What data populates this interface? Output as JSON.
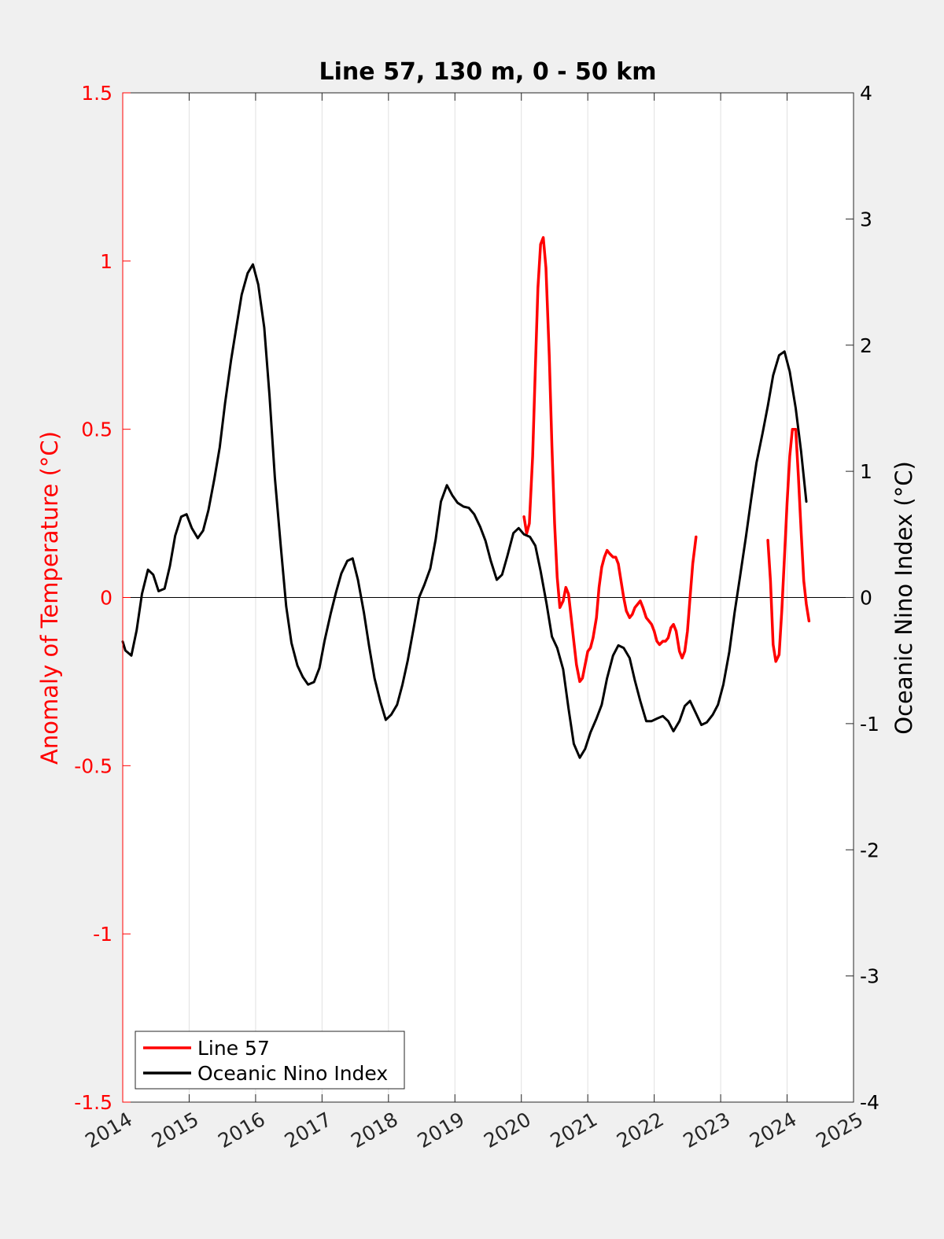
{
  "chart_data": {
    "type": "line",
    "title": "Line 57, 130 m, 0 - 50 km",
    "xlabel": "",
    "ylabel_left": "Anomaly of Temperature (°C)",
    "ylabel_right": "Oceanic Nino Index (°C)",
    "xlim": [
      2014,
      2025
    ],
    "ylim_left": [
      -1.5,
      1.5
    ],
    "ylim_right": [
      -4,
      4
    ],
    "x_ticks": [
      "2014",
      "2015",
      "2016",
      "2017",
      "2018",
      "2019",
      "2020",
      "2021",
      "2022",
      "2023",
      "2024",
      "2025"
    ],
    "y_ticks_left": [
      "-1.5",
      "-1",
      "-0.5",
      "0",
      "0.5",
      "1",
      "1.5"
    ],
    "y_ticks_right": [
      "-4",
      "-3",
      "-2",
      "-1",
      "0",
      "1",
      "2",
      "3",
      "4"
    ],
    "grid": "x-only",
    "zero_line": true,
    "legend_position": "bottom-left",
    "colors": {
      "line57": "#ff0000",
      "oni": "#000000",
      "left_axis": "#ff0000",
      "right_axis": "#000000"
    },
    "series": [
      {
        "name": "Line 57",
        "axis": "left",
        "segments": [
          [
            [
              2020.04,
              0.24
            ],
            [
              2020.08,
              0.19
            ],
            [
              2020.12,
              0.22
            ],
            [
              2020.17,
              0.42
            ],
            [
              2020.21,
              0.68
            ],
            [
              2020.25,
              0.92
            ],
            [
              2020.29,
              1.05
            ],
            [
              2020.33,
              1.07
            ],
            [
              2020.37,
              0.98
            ],
            [
              2020.42,
              0.72
            ],
            [
              2020.46,
              0.45
            ],
            [
              2020.5,
              0.22
            ],
            [
              2020.54,
              0.06
            ],
            [
              2020.58,
              -0.03
            ],
            [
              2020.63,
              -0.01
            ],
            [
              2020.67,
              0.03
            ],
            [
              2020.71,
              0.01
            ],
            [
              2020.75,
              -0.06
            ],
            [
              2020.79,
              -0.13
            ],
            [
              2020.83,
              -0.2
            ],
            [
              2020.88,
              -0.25
            ],
            [
              2020.92,
              -0.24
            ],
            [
              2020.96,
              -0.2
            ],
            [
              2021.0,
              -0.16
            ],
            [
              2021.04,
              -0.15
            ],
            [
              2021.08,
              -0.12
            ],
            [
              2021.13,
              -0.06
            ],
            [
              2021.17,
              0.03
            ],
            [
              2021.21,
              0.09
            ],
            [
              2021.25,
              0.12
            ],
            [
              2021.29,
              0.14
            ],
            [
              2021.33,
              0.13
            ],
            [
              2021.38,
              0.12
            ],
            [
              2021.42,
              0.12
            ],
            [
              2021.46,
              0.1
            ],
            [
              2021.5,
              0.05
            ],
            [
              2021.54,
              0.0
            ],
            [
              2021.58,
              -0.04
            ],
            [
              2021.63,
              -0.06
            ],
            [
              2021.67,
              -0.05
            ],
            [
              2021.71,
              -0.03
            ],
            [
              2021.75,
              -0.02
            ],
            [
              2021.79,
              -0.01
            ],
            [
              2021.83,
              -0.03
            ],
            [
              2021.88,
              -0.06
            ],
            [
              2021.92,
              -0.07
            ],
            [
              2021.96,
              -0.08
            ],
            [
              2022.0,
              -0.1
            ],
            [
              2022.04,
              -0.13
            ],
            [
              2022.08,
              -0.14
            ],
            [
              2022.13,
              -0.13
            ],
            [
              2022.17,
              -0.13
            ],
            [
              2022.21,
              -0.12
            ],
            [
              2022.25,
              -0.09
            ],
            [
              2022.29,
              -0.08
            ],
            [
              2022.33,
              -0.1
            ],
            [
              2022.38,
              -0.16
            ],
            [
              2022.42,
              -0.18
            ],
            [
              2022.46,
              -0.16
            ],
            [
              2022.5,
              -0.1
            ],
            [
              2022.54,
              0.0
            ],
            [
              2022.58,
              0.1
            ],
            [
              2022.63,
              0.18
            ]
          ],
          [
            [
              2023.71,
              0.17
            ],
            [
              2023.75,
              0.05
            ],
            [
              2023.79,
              -0.14
            ],
            [
              2023.83,
              -0.19
            ],
            [
              2023.88,
              -0.17
            ],
            [
              2023.92,
              -0.04
            ],
            [
              2023.96,
              0.12
            ],
            [
              2024.0,
              0.28
            ],
            [
              2024.04,
              0.42
            ],
            [
              2024.08,
              0.5
            ],
            [
              2024.13,
              0.5
            ],
            [
              2024.17,
              0.36
            ],
            [
              2024.21,
              0.2
            ],
            [
              2024.25,
              0.05
            ],
            [
              2024.29,
              -0.02
            ],
            [
              2024.33,
              -0.07
            ]
          ]
        ]
      },
      {
        "name": "Oceanic Nino Index",
        "axis": "right",
        "segments": [
          [
            [
              2014.0,
              -0.35
            ],
            [
              2014.04,
              -0.42
            ],
            [
              2014.13,
              -0.46
            ],
            [
              2014.21,
              -0.26
            ],
            [
              2014.29,
              0.03
            ],
            [
              2014.38,
              0.22
            ],
            [
              2014.46,
              0.18
            ],
            [
              2014.54,
              0.05
            ],
            [
              2014.63,
              0.07
            ],
            [
              2014.71,
              0.25
            ],
            [
              2014.79,
              0.49
            ],
            [
              2014.88,
              0.64
            ],
            [
              2014.96,
              0.66
            ],
            [
              2015.04,
              0.55
            ],
            [
              2015.13,
              0.47
            ],
            [
              2015.21,
              0.53
            ],
            [
              2015.29,
              0.69
            ],
            [
              2015.38,
              0.94
            ],
            [
              2015.46,
              1.19
            ],
            [
              2015.54,
              1.54
            ],
            [
              2015.63,
              1.88
            ],
            [
              2015.71,
              2.14
            ],
            [
              2015.79,
              2.4
            ],
            [
              2015.88,
              2.57
            ],
            [
              2015.96,
              2.64
            ],
            [
              2016.04,
              2.48
            ],
            [
              2016.13,
              2.14
            ],
            [
              2016.21,
              1.6
            ],
            [
              2016.29,
              0.95
            ],
            [
              2016.38,
              0.4
            ],
            [
              2016.46,
              -0.07
            ],
            [
              2016.54,
              -0.36
            ],
            [
              2016.63,
              -0.54
            ],
            [
              2016.71,
              -0.63
            ],
            [
              2016.79,
              -0.69
            ],
            [
              2016.88,
              -0.67
            ],
            [
              2016.96,
              -0.56
            ],
            [
              2017.04,
              -0.34
            ],
            [
              2017.13,
              -0.13
            ],
            [
              2017.21,
              0.04
            ],
            [
              2017.29,
              0.19
            ],
            [
              2017.38,
              0.29
            ],
            [
              2017.46,
              0.31
            ],
            [
              2017.54,
              0.14
            ],
            [
              2017.63,
              -0.12
            ],
            [
              2017.71,
              -0.39
            ],
            [
              2017.79,
              -0.64
            ],
            [
              2017.88,
              -0.83
            ],
            [
              2017.96,
              -0.97
            ],
            [
              2018.04,
              -0.93
            ],
            [
              2018.13,
              -0.85
            ],
            [
              2018.21,
              -0.69
            ],
            [
              2018.29,
              -0.5
            ],
            [
              2018.38,
              -0.24
            ],
            [
              2018.46,
              0.0
            ],
            [
              2018.54,
              0.1
            ],
            [
              2018.63,
              0.23
            ],
            [
              2018.71,
              0.46
            ],
            [
              2018.79,
              0.76
            ],
            [
              2018.88,
              0.89
            ],
            [
              2018.96,
              0.81
            ],
            [
              2019.04,
              0.75
            ],
            [
              2019.13,
              0.72
            ],
            [
              2019.21,
              0.71
            ],
            [
              2019.29,
              0.66
            ],
            [
              2019.38,
              0.56
            ],
            [
              2019.46,
              0.45
            ],
            [
              2019.54,
              0.29
            ],
            [
              2019.63,
              0.14
            ],
            [
              2019.71,
              0.18
            ],
            [
              2019.79,
              0.33
            ],
            [
              2019.88,
              0.51
            ],
            [
              2019.96,
              0.55
            ],
            [
              2020.04,
              0.5
            ],
            [
              2020.13,
              0.48
            ],
            [
              2020.21,
              0.41
            ],
            [
              2020.29,
              0.21
            ],
            [
              2020.38,
              -0.05
            ],
            [
              2020.46,
              -0.31
            ],
            [
              2020.54,
              -0.4
            ],
            [
              2020.63,
              -0.57
            ],
            [
              2020.71,
              -0.88
            ],
            [
              2020.79,
              -1.16
            ],
            [
              2020.88,
              -1.27
            ],
            [
              2020.96,
              -1.2
            ],
            [
              2021.04,
              -1.07
            ],
            [
              2021.13,
              -0.96
            ],
            [
              2021.21,
              -0.85
            ],
            [
              2021.29,
              -0.64
            ],
            [
              2021.38,
              -0.46
            ],
            [
              2021.46,
              -0.38
            ],
            [
              2021.54,
              -0.4
            ],
            [
              2021.63,
              -0.48
            ],
            [
              2021.71,
              -0.66
            ],
            [
              2021.79,
              -0.82
            ],
            [
              2021.88,
              -0.98
            ],
            [
              2021.96,
              -0.98
            ],
            [
              2022.04,
              -0.96
            ],
            [
              2022.13,
              -0.94
            ],
            [
              2022.21,
              -0.98
            ],
            [
              2022.29,
              -1.06
            ],
            [
              2022.38,
              -0.98
            ],
            [
              2022.46,
              -0.86
            ],
            [
              2022.54,
              -0.82
            ],
            [
              2022.63,
              -0.92
            ],
            [
              2022.71,
              -1.01
            ],
            [
              2022.79,
              -0.99
            ],
            [
              2022.88,
              -0.93
            ],
            [
              2022.96,
              -0.85
            ],
            [
              2023.04,
              -0.69
            ],
            [
              2023.13,
              -0.43
            ],
            [
              2023.21,
              -0.12
            ],
            [
              2023.29,
              0.16
            ],
            [
              2023.38,
              0.48
            ],
            [
              2023.46,
              0.78
            ],
            [
              2023.54,
              1.07
            ],
            [
              2023.63,
              1.3
            ],
            [
              2023.71,
              1.52
            ],
            [
              2023.79,
              1.76
            ],
            [
              2023.88,
              1.92
            ],
            [
              2023.96,
              1.95
            ],
            [
              2024.04,
              1.79
            ],
            [
              2024.13,
              1.5
            ],
            [
              2024.21,
              1.16
            ],
            [
              2024.29,
              0.76
            ]
          ]
        ]
      }
    ]
  }
}
